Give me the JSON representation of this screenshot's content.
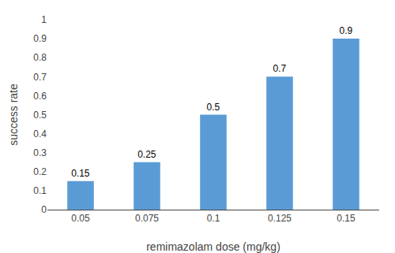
{
  "chart_data": {
    "type": "bar",
    "categories": [
      "0.05",
      "0.075",
      "0.1",
      "0.125",
      "0.15"
    ],
    "values": [
      0.15,
      0.25,
      0.5,
      0.7,
      0.9
    ],
    "color": "#5B9BD5",
    "xlabel": "remimazolam dose (mg/kg)",
    "ylabel": "success rate",
    "ylim": [
      0,
      1
    ],
    "yticks": [
      0,
      0.1,
      0.2,
      0.3,
      0.4,
      0.5,
      0.6,
      0.7,
      0.8,
      0.9,
      1
    ],
    "grid": false,
    "data_labels": true
  }
}
